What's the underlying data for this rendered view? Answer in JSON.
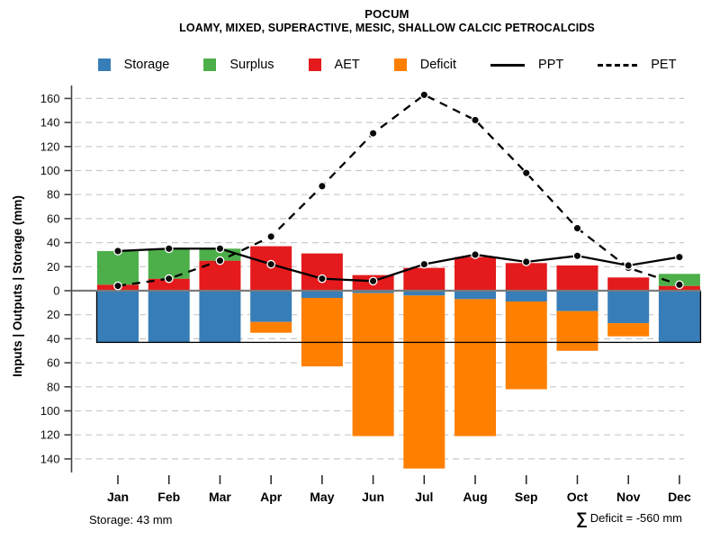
{
  "header": {
    "title": "POCUM",
    "subtitle": "LOAMY, MIXED, SUPERACTIVE, MESIC, SHALLOW CALCIC PETROCALCIDS"
  },
  "legend": {
    "items": [
      {
        "label": "Storage",
        "swatch": "square",
        "color": "#377EB8"
      },
      {
        "label": "Surplus",
        "swatch": "square",
        "color": "#4DAF4A"
      },
      {
        "label": "AET",
        "swatch": "square",
        "color": "#E41A1C"
      },
      {
        "label": "Deficit",
        "swatch": "square",
        "color": "#FF7F00"
      },
      {
        "label": "PPT",
        "swatch": "line-solid",
        "color": "#000000"
      },
      {
        "label": "PET",
        "swatch": "line-dashed",
        "color": "#000000"
      }
    ]
  },
  "chart_data": {
    "type": "bar",
    "title": "POCUM",
    "subtitle": "LOAMY, MIXED, SUPERACTIVE, MESIC, SHALLOW CALCIC PETROCALCIDS",
    "categories": [
      "Jan",
      "Feb",
      "Mar",
      "Apr",
      "May",
      "Jun",
      "Jul",
      "Aug",
      "Sep",
      "Oct",
      "Nov",
      "Dec"
    ],
    "series": [
      {
        "name": "AET",
        "kind": "bar",
        "direction": "up",
        "stack": "above-base",
        "color": "#E41A1C",
        "values": [
          5,
          10,
          25,
          37,
          31,
          13,
          19,
          28,
          23,
          21,
          11,
          4
        ]
      },
      {
        "name": "Surplus",
        "kind": "bar",
        "direction": "up",
        "stack": "above-AET",
        "color": "#4DAF4A",
        "values": [
          28,
          25,
          10,
          0,
          0,
          0,
          0,
          0,
          0,
          0,
          0,
          10
        ]
      },
      {
        "name": "Storage",
        "kind": "bar",
        "direction": "down",
        "stack": "below-base",
        "color": "#377EB8",
        "values": [
          43,
          43,
          43,
          26,
          6,
          2,
          4,
          7,
          9,
          17,
          27,
          43
        ]
      },
      {
        "name": "Deficit",
        "kind": "bar",
        "direction": "down",
        "stack": "below-Storage",
        "color": "#FF7F00",
        "values": [
          0,
          0,
          0,
          9,
          57,
          119,
          144,
          114,
          73,
          33,
          11,
          0
        ]
      },
      {
        "name": "PPT",
        "kind": "line",
        "style": "solid",
        "color": "#000000",
        "values": [
          33,
          35,
          35,
          22,
          10,
          8,
          22,
          30,
          24,
          29,
          21,
          28
        ]
      },
      {
        "name": "PET",
        "kind": "line",
        "style": "dashed",
        "color": "#000000",
        "values": [
          4,
          10,
          25,
          45,
          87,
          131,
          163,
          142,
          98,
          52,
          19,
          5
        ]
      }
    ],
    "xlabel": "",
    "ylabel": "Inputs | Outputs | Storage  (mm)",
    "yticks": [
      160,
      140,
      120,
      100,
      80,
      60,
      40,
      20,
      0,
      -20,
      -40,
      -60,
      -80,
      -100,
      -120,
      -140
    ],
    "ytick_labels_absolute": true,
    "ylim": [
      -155,
      170
    ],
    "grid": "horizontal-dashed",
    "legend_position": "top",
    "storage_capacity_mm": 43,
    "annotations": {
      "storage_note": "Storage: 43 mm",
      "deficit_total_note": "∑ Deficit = -560 mm"
    }
  },
  "footer": {
    "storage_note": "Storage: 43 mm",
    "sigma": "∑",
    "deficit_text": "Deficit = -560 mm"
  }
}
